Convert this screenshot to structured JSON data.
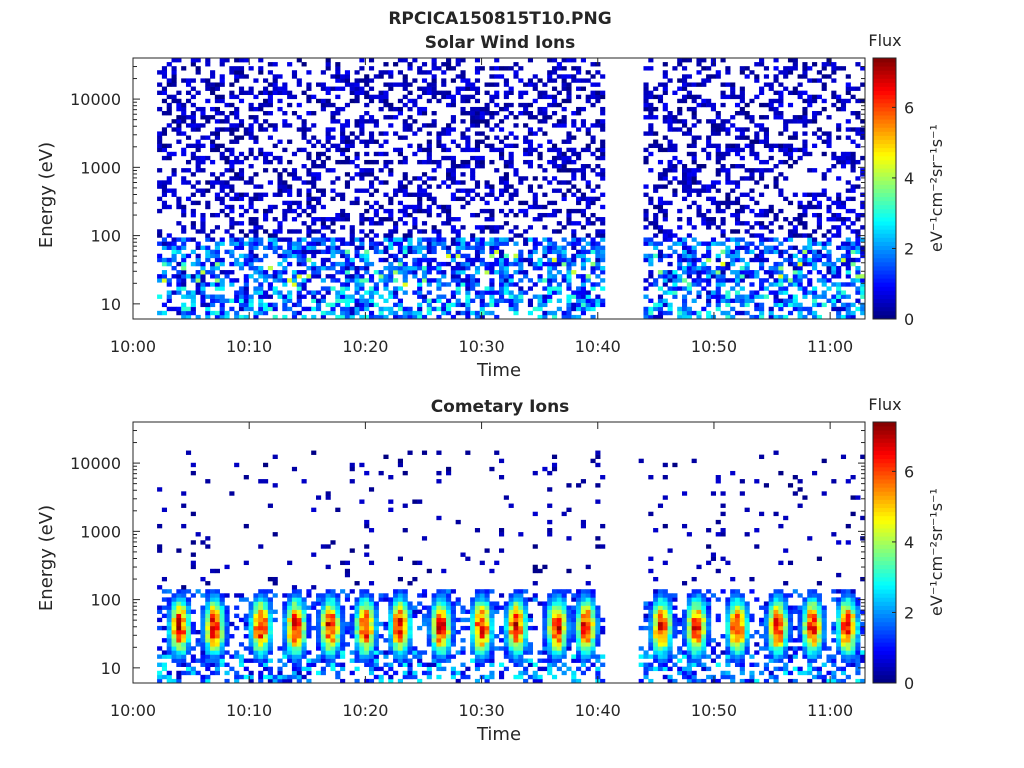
{
  "figure": {
    "title": "RPCICA150815T10.PNG"
  },
  "colormap": {
    "name": "jet",
    "label": "Flux",
    "units_label": "eV⁻¹cm⁻²sr⁻¹s⁻¹",
    "ticks": [
      0,
      2,
      4,
      6
    ],
    "range": [
      0,
      7.4
    ]
  },
  "chart_data": [
    {
      "type": "heatmap",
      "title": "Solar Wind Ions",
      "xlabel": "Time",
      "ylabel": "Energy (eV)",
      "y_scale": "log",
      "x_range": [
        "10:00",
        "11:03"
      ],
      "y_range": [
        6,
        40000
      ],
      "x_ticks": [
        "10:00",
        "10:10",
        "10:20",
        "10:30",
        "10:40",
        "10:50",
        "11:00"
      ],
      "y_ticks": [
        10,
        100,
        1000,
        10000
      ],
      "data_gaps": [
        [
          "10:00",
          "10:02"
        ],
        [
          "10:40.5",
          "10:44"
        ]
      ],
      "colorbar": {
        "label": "Flux",
        "ticks": [
          0,
          2,
          4,
          6
        ],
        "range": [
          0,
          7.4
        ]
      },
      "description_series": [
        {
          "name": "sparse high-energy counts",
          "energy_range": [
            100,
            40000
          ],
          "flux_range": [
            0,
            1
          ]
        },
        {
          "name": "low-energy band",
          "energy_range": [
            6,
            100
          ],
          "flux_range": [
            1,
            4
          ]
        }
      ]
    },
    {
      "type": "heatmap",
      "title": "Cometary Ions",
      "xlabel": "Time",
      "ylabel": "Energy (eV)",
      "y_scale": "log",
      "x_range": [
        "10:00",
        "11:03"
      ],
      "y_range": [
        6,
        40000
      ],
      "x_ticks": [
        "10:00",
        "10:10",
        "10:20",
        "10:30",
        "10:40",
        "10:50",
        "11:00"
      ],
      "y_ticks": [
        10,
        100,
        1000,
        10000
      ],
      "data_gaps": [
        [
          "10:00",
          "10:02"
        ],
        [
          "10:40.5",
          "10:43.5"
        ]
      ],
      "colorbar": {
        "label": "Flux",
        "ticks": [
          0,
          2,
          4,
          6
        ],
        "range": [
          0,
          7.4
        ]
      },
      "burst_times_min": [
        4,
        7,
        11,
        14,
        17,
        20,
        23,
        26.5,
        30,
        33,
        36.5,
        39,
        45.5,
        48.5,
        52,
        55.5,
        58.5,
        61.5
      ],
      "burst_peak_energy_eV": 40,
      "burst_peak_flux": 7
    }
  ]
}
